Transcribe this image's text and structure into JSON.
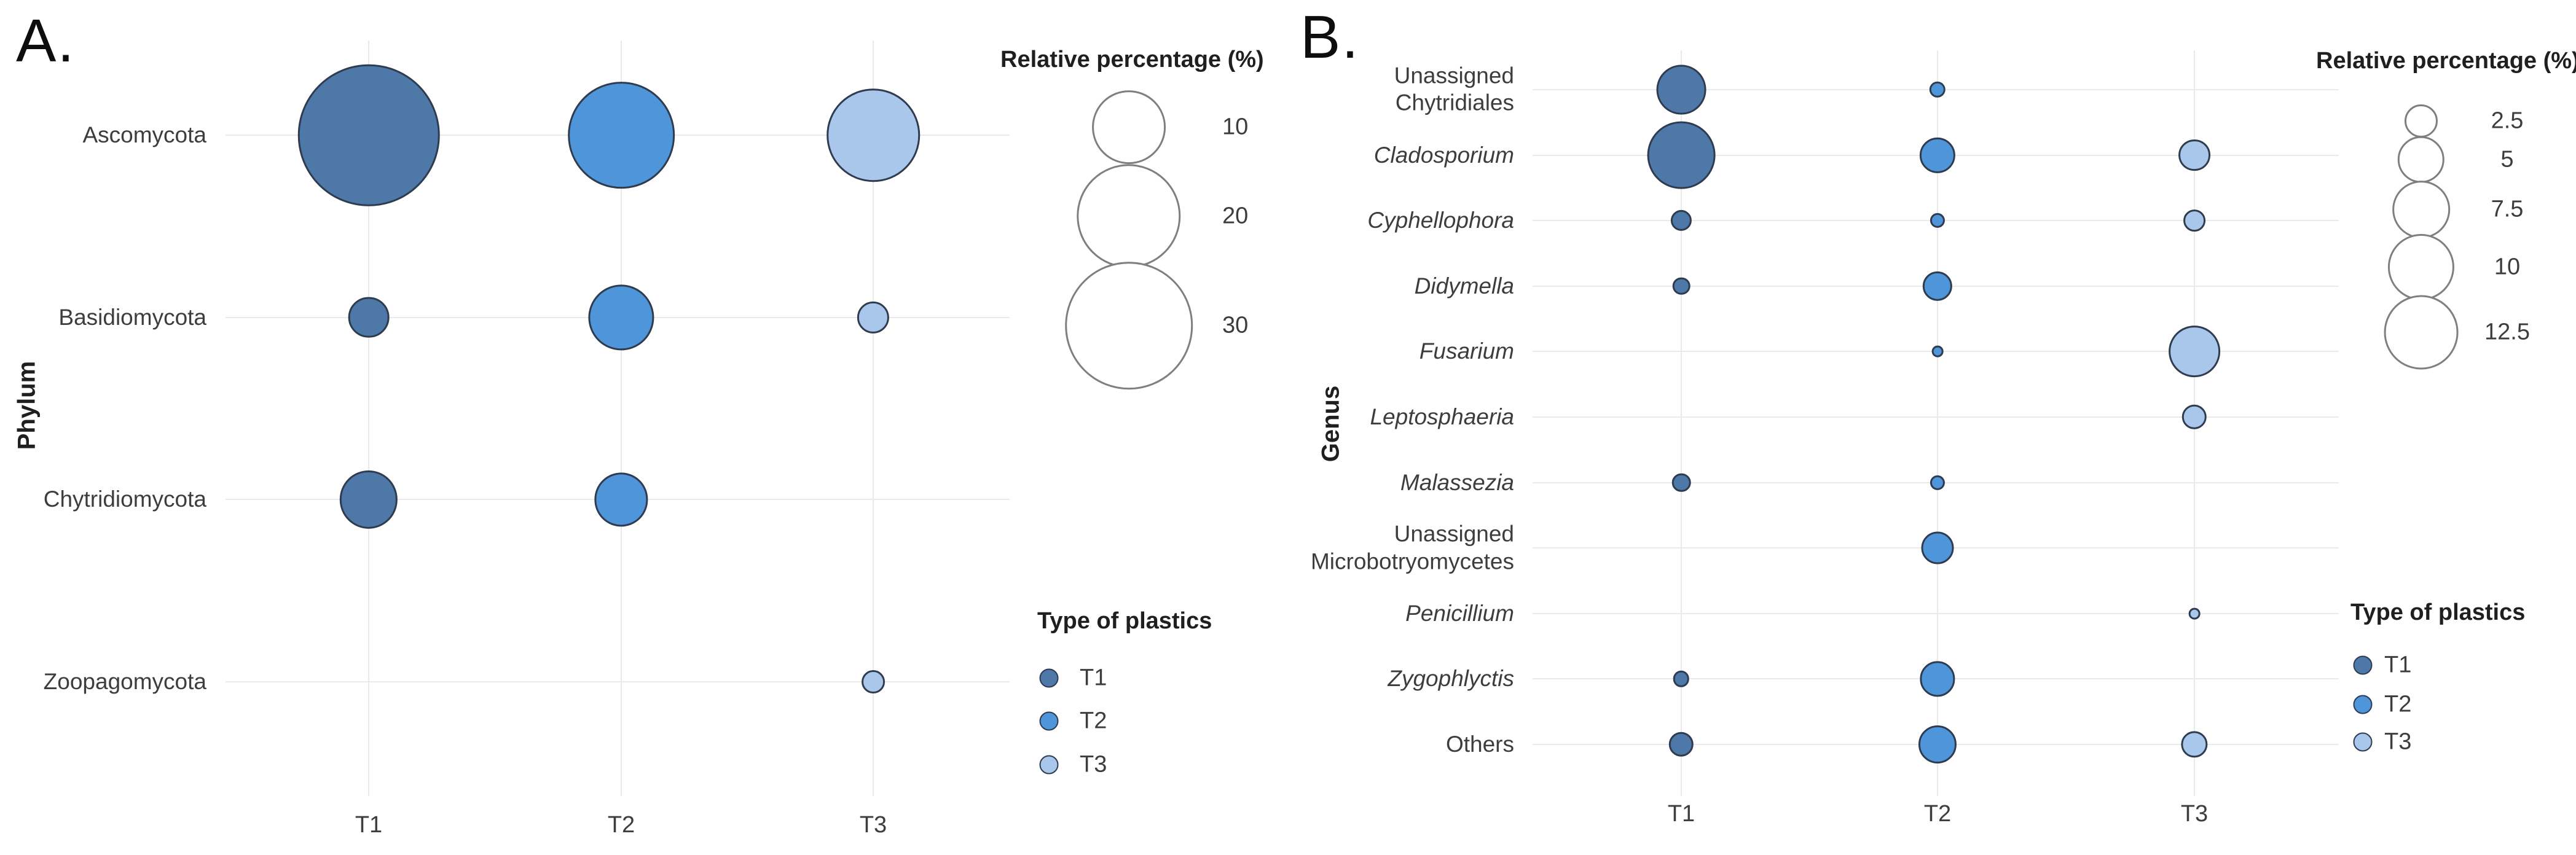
{
  "colors": {
    "T1": "#4d78a8",
    "T2": "#4f95d9",
    "T3": "#a9c7eb",
    "bubble_stroke": "#2f3b4e",
    "legend_circle_stroke": "#7f7f7f",
    "gridline": "#eaeaea",
    "text": "#3d3d3d"
  },
  "chart_data": [
    {
      "id": "A",
      "type": "scatter",
      "subtype": "bubble-matrix",
      "panel_label": "A.",
      "ylabel": "Phylum",
      "xlabel": "",
      "x_categories": [
        "T1",
        "T2",
        "T3"
      ],
      "y_categories": [
        "Ascomycota",
        "Basidiomycota",
        "Chytridiomycota",
        "Zoopagomycota"
      ],
      "y_italic": [
        false,
        false,
        false,
        false
      ],
      "series": [
        {
          "name": "T1",
          "values": [
            37,
            3.1,
            6.2,
            null
          ]
        },
        {
          "name": "T2",
          "values": [
            21,
            8,
            5.3,
            null
          ]
        },
        {
          "name": "T3",
          "values": [
            16,
            1.9,
            null,
            1
          ]
        }
      ],
      "size_legend": {
        "title": "Relative percentage (%)",
        "values": [
          10,
          20,
          30
        ]
      },
      "color_legend": {
        "title": "Type of plastics",
        "entries": [
          "T1",
          "T2",
          "T3"
        ]
      },
      "grid": true,
      "legend_position": "right"
    },
    {
      "id": "B",
      "type": "scatter",
      "subtype": "bubble-matrix",
      "panel_label": "B.",
      "ylabel": "Genus",
      "xlabel": "",
      "x_categories": [
        "T1",
        "T2",
        "T3"
      ],
      "y_categories": [
        "Unassigned\nChytridiales",
        "Cladosporium",
        "Cyphellophora",
        "Didymella",
        "Fusarium",
        "Leptosphaeria",
        "Malassezia",
        "Unassigned\nMicrobotryomycetes",
        "Penicillium",
        "Zygophlyctis",
        "Others"
      ],
      "y_italic": [
        false,
        true,
        true,
        true,
        true,
        true,
        true,
        false,
        true,
        true,
        false
      ],
      "series": [
        {
          "name": "T1",
          "values": [
            5.6,
            10.5,
            1,
            0.7,
            null,
            null,
            0.8,
            null,
            null,
            0.6,
            1.4
          ]
        },
        {
          "name": "T2",
          "values": [
            0.6,
            2.9,
            0.5,
            2,
            0.3,
            null,
            0.5,
            2.4,
            null,
            2.8,
            3.3
          ]
        },
        {
          "name": "T3",
          "values": [
            null,
            2.3,
            1.1,
            null,
            6,
            1.4,
            null,
            null,
            0.3,
            null,
            1.6
          ]
        }
      ],
      "size_legend": {
        "title": "Relative percentage (%)",
        "values": [
          2.5,
          5,
          7.5,
          10,
          12.5
        ]
      },
      "color_legend": {
        "title": "Type of plastics",
        "entries": [
          "T1",
          "T2",
          "T3"
        ]
      },
      "grid": true,
      "legend_position": "right"
    }
  ]
}
